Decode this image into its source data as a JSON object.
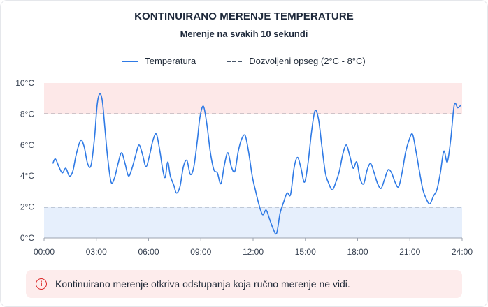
{
  "title": "KONTINUIRANO MERENJE TEMPERATURE",
  "subtitle": "Merenje na svakih 10 sekundi",
  "legend": {
    "series_label": "Temperatura",
    "range_label": "Dozvoljeni opseg (2°C - 8°C)"
  },
  "alert": {
    "icon": "info-icon",
    "text": "Kontinuirano merenje otkriva odstupanja koja ručno merenje ne vidi."
  },
  "colors": {
    "line": "#2f7ae5",
    "above_band": "#fde8e8",
    "below_band": "#e6effc",
    "threshold": "#475569",
    "alert_bg": "#fdecec",
    "alert_icon": "#dc2626"
  },
  "chart_data": {
    "type": "line",
    "title": "KONTINUIRANO MERENJE TEMPERATURE",
    "subtitle": "Merenje na svakih 10 sekundi",
    "x_unit": "hours",
    "xlim": [
      0,
      24
    ],
    "ylim": [
      0,
      10
    ],
    "x_tick_labels": [
      "00:00",
      "03:00",
      "06:00",
      "09:00",
      "12:00",
      "15:00",
      "18:00",
      "21:00",
      "24:00"
    ],
    "y_tick_labels": [
      "0°C",
      "2°C",
      "4°C",
      "6°C",
      "8°C",
      "10°C"
    ],
    "thresholds": [
      2,
      8
    ],
    "threshold_label": "Dozvoljeni opseg (2°C - 8°C)",
    "legend_position": "top",
    "grid": false,
    "series": [
      {
        "name": "Temperatura",
        "x": [
          0.5,
          0.65,
          0.85,
          1.05,
          1.25,
          1.45,
          1.65,
          1.85,
          2.1,
          2.3,
          2.5,
          2.7,
          2.9,
          3.05,
          3.2,
          3.35,
          3.5,
          3.65,
          3.85,
          4.05,
          4.25,
          4.45,
          4.65,
          4.85,
          5.05,
          5.25,
          5.45,
          5.65,
          5.85,
          6.05,
          6.25,
          6.45,
          6.65,
          6.8,
          6.95,
          7.1,
          7.25,
          7.45,
          7.6,
          7.8,
          8.0,
          8.2,
          8.4,
          8.6,
          8.8,
          8.95,
          9.15,
          9.35,
          9.55,
          9.75,
          9.95,
          10.15,
          10.35,
          10.55,
          10.75,
          10.95,
          11.15,
          11.35,
          11.55,
          11.75,
          11.95,
          12.15,
          12.35,
          12.55,
          12.75,
          12.95,
          13.15,
          13.35,
          13.55,
          13.75,
          13.95,
          14.15,
          14.35,
          14.55,
          14.75,
          14.95,
          15.15,
          15.35,
          15.55,
          15.75,
          15.95,
          16.15,
          16.35,
          16.55,
          16.75,
          16.95,
          17.15,
          17.35,
          17.55,
          17.75,
          17.95,
          18.15,
          18.35,
          18.55,
          18.75,
          18.95,
          19.15,
          19.35,
          19.55,
          19.75,
          19.95,
          20.15,
          20.35,
          20.55,
          20.75,
          20.95,
          21.15,
          21.35,
          21.55,
          21.75,
          21.95,
          22.15,
          22.35,
          22.55,
          22.75,
          22.95,
          23.15,
          23.35,
          23.55,
          23.75,
          23.95
        ],
        "values": [
          4.8,
          5.1,
          4.6,
          4.2,
          4.5,
          4.0,
          4.3,
          5.4,
          6.3,
          5.9,
          4.8,
          4.7,
          6.5,
          8.6,
          9.3,
          8.8,
          7.0,
          5.2,
          3.6,
          3.9,
          4.8,
          5.5,
          4.8,
          4.0,
          4.5,
          5.3,
          6.0,
          5.4,
          4.6,
          5.3,
          6.3,
          6.7,
          5.6,
          4.5,
          3.9,
          4.9,
          4.0,
          3.4,
          2.9,
          3.3,
          4.6,
          5.0,
          4.1,
          4.6,
          6.3,
          7.8,
          8.5,
          7.3,
          5.5,
          4.4,
          4.2,
          3.5,
          4.7,
          5.5,
          4.6,
          4.3,
          5.6,
          6.4,
          6.6,
          5.5,
          4.0,
          3.0,
          2.1,
          1.5,
          1.8,
          1.2,
          0.6,
          0.3,
          1.6,
          2.3,
          2.9,
          2.8,
          4.5,
          5.2,
          4.5,
          3.6,
          4.8,
          6.8,
          8.2,
          7.7,
          5.9,
          4.2,
          3.5,
          3.1,
          3.6,
          4.3,
          5.4,
          6.0,
          5.3,
          4.5,
          4.9,
          3.8,
          3.5,
          4.4,
          4.8,
          4.2,
          3.5,
          3.2,
          3.8,
          4.4,
          4.2,
          3.6,
          3.3,
          4.2,
          5.5,
          6.3,
          6.7,
          5.6,
          4.3,
          3.1,
          2.5,
          2.2,
          2.7,
          3.1,
          4.2,
          5.6,
          4.9,
          6.4,
          8.6,
          8.4,
          8.6
        ]
      }
    ]
  }
}
